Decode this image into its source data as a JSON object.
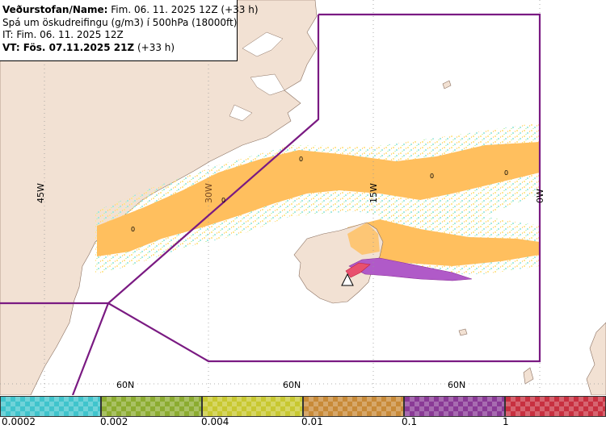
{
  "header": {
    "line1_label": "Veðurstofan/Name:",
    "line1_value": "Fim. 06. 11. 2025 12Z (+33 h)",
    "line2": "Spá um öskudreifingu (g/m3) í 500hPa (18000ft)",
    "line3": "IT: Fim. 06. 11. 2025 12Z",
    "line4_label": "VT: Fös. 07.11.2025 21Z",
    "line4_value": "(+33 h)"
  },
  "map": {
    "meridian_labels": [
      "45W",
      "30W",
      "15W",
      "0W"
    ],
    "parallel_labels": [
      "60N",
      "60N",
      "60N"
    ],
    "contour_labels": [
      "0",
      "0",
      "0",
      "0",
      "0"
    ],
    "colors": {
      "land": "#f2e1d3",
      "sea": "#ffffff",
      "ash_low": "#ffbf5e",
      "ash_mid": "#b05ac8",
      "ash_high": "#e8506e",
      "boundary": "#7a1a82"
    }
  },
  "legend": {
    "tick_labels": [
      "0.0002",
      "0.002",
      "0.004",
      "0.01",
      "0.1",
      "1"
    ],
    "colors": [
      "#40c4cc",
      "#8cac30",
      "#c8c830",
      "#c88a38",
      "#8a3a96",
      "#c83040"
    ]
  }
}
